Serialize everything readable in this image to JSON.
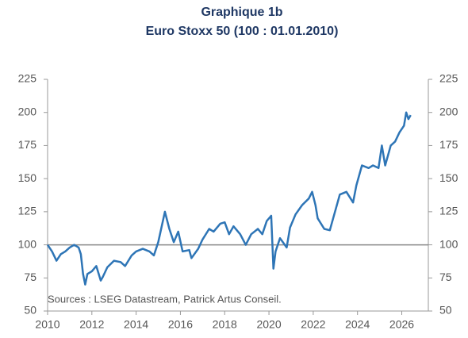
{
  "chart_data": {
    "type": "line",
    "title": "Graphique 1b",
    "subtitle": "Euro Stoxx 50 (100 : 01.01.2010)",
    "note": "Sources : LSEG Datastream, Patrick Artus Conseil.",
    "x": [
      2010.0,
      2010.2,
      2010.4,
      2010.6,
      2010.8,
      2011.0,
      2011.2,
      2011.4,
      2011.5,
      2011.6,
      2011.7,
      2011.8,
      2012.0,
      2012.2,
      2012.4,
      2012.5,
      2012.7,
      2013.0,
      2013.3,
      2013.5,
      2013.8,
      2014.0,
      2014.3,
      2014.6,
      2014.8,
      2015.0,
      2015.3,
      2015.5,
      2015.7,
      2015.9,
      2016.1,
      2016.4,
      2016.5,
      2016.8,
      2017.0,
      2017.3,
      2017.5,
      2017.8,
      2018.0,
      2018.2,
      2018.4,
      2018.7,
      2018.95,
      2019.2,
      2019.5,
      2019.7,
      2019.9,
      2020.1,
      2020.2,
      2020.3,
      2020.5,
      2020.8,
      2020.95,
      2021.2,
      2021.5,
      2021.8,
      2021.95,
      2022.1,
      2022.2,
      2022.5,
      2022.75,
      2022.95,
      2023.2,
      2023.5,
      2023.8,
      2023.95,
      2024.2,
      2024.5,
      2024.7,
      2024.95,
      2025.1,
      2025.25,
      2025.5,
      2025.7,
      2025.9,
      2026.1,
      2026.2,
      2026.3,
      2026.4
    ],
    "series": [
      {
        "name": "Euro Stoxx 50",
        "color": "#2e75b6",
        "values": [
          100,
          95,
          88,
          93,
          95,
          98,
          100,
          98,
          93,
          78,
          70,
          78,
          80,
          84,
          73,
          76,
          83,
          88,
          87,
          84,
          92,
          95,
          97,
          95,
          92,
          102,
          125,
          112,
          102,
          110,
          95,
          96,
          90,
          97,
          104,
          112,
          110,
          116,
          117,
          108,
          114,
          108,
          100,
          108,
          112,
          108,
          118,
          122,
          82,
          95,
          105,
          98,
          113,
          123,
          130,
          135,
          140,
          130,
          120,
          112,
          111,
          123,
          138,
          140,
          132,
          145,
          160,
          158,
          160,
          158,
          175,
          160,
          175,
          178,
          185,
          190,
          200,
          195,
          198
        ]
      }
    ],
    "xlim": [
      2010,
      2027.2
    ],
    "xticks": [
      2010,
      2012,
      2014,
      2016,
      2018,
      2020,
      2022,
      2024,
      2026
    ],
    "ylim": [
      50,
      225
    ],
    "yticks": [
      50,
      75,
      100,
      125,
      150,
      175,
      200,
      225
    ],
    "y2lim": [
      50,
      225
    ],
    "y2ticks": [
      50,
      75,
      100,
      125,
      150,
      175,
      200,
      225
    ],
    "reference_line": 100
  }
}
